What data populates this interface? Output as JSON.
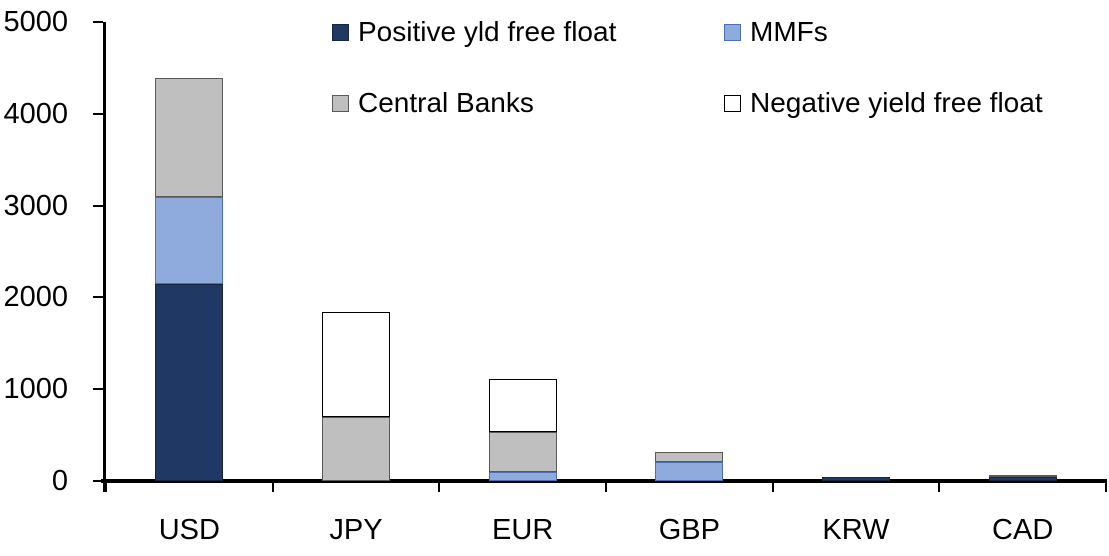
{
  "chart_data": {
    "type": "bar",
    "stacked": true,
    "title": "",
    "xlabel": "",
    "ylabel": "",
    "categories": [
      "USD",
      "JPY",
      "EUR",
      "GBP",
      "KRW",
      "CAD"
    ],
    "series": [
      {
        "name": "Positive yld free float",
        "color": "#1F3864",
        "border_color": "#17273F",
        "values": [
          2150,
          0,
          0,
          0,
          40,
          45
        ]
      },
      {
        "name": "MMFs",
        "color": "#8FAADC",
        "border_color": "#4A6FB5",
        "values": [
          940,
          0,
          100,
          210,
          0,
          0
        ]
      },
      {
        "name": "Central Banks",
        "color": "#BFBFBF",
        "border_color": "#595959",
        "values": [
          1300,
          700,
          435,
          105,
          0,
          25
        ]
      },
      {
        "name": "Negative yield free float",
        "color": "#FFFFFF",
        "border_color": "#000000",
        "values": [
          0,
          1140,
          575,
          0,
          0,
          0
        ]
      }
    ],
    "totals": {
      "USD": 4390,
      "JPY": 1840,
      "EUR": 1110,
      "GBP": 315,
      "KRW": 40,
      "CAD": 70
    },
    "ylim": [
      0,
      5000
    ],
    "yticks": [
      "0",
      "1000",
      "2000",
      "3000",
      "4000",
      "5000"
    ],
    "grid": false,
    "legend_position": "top",
    "legend_columns": 2,
    "axis_color": "#000000",
    "background_color": "#FFFFFF"
  }
}
